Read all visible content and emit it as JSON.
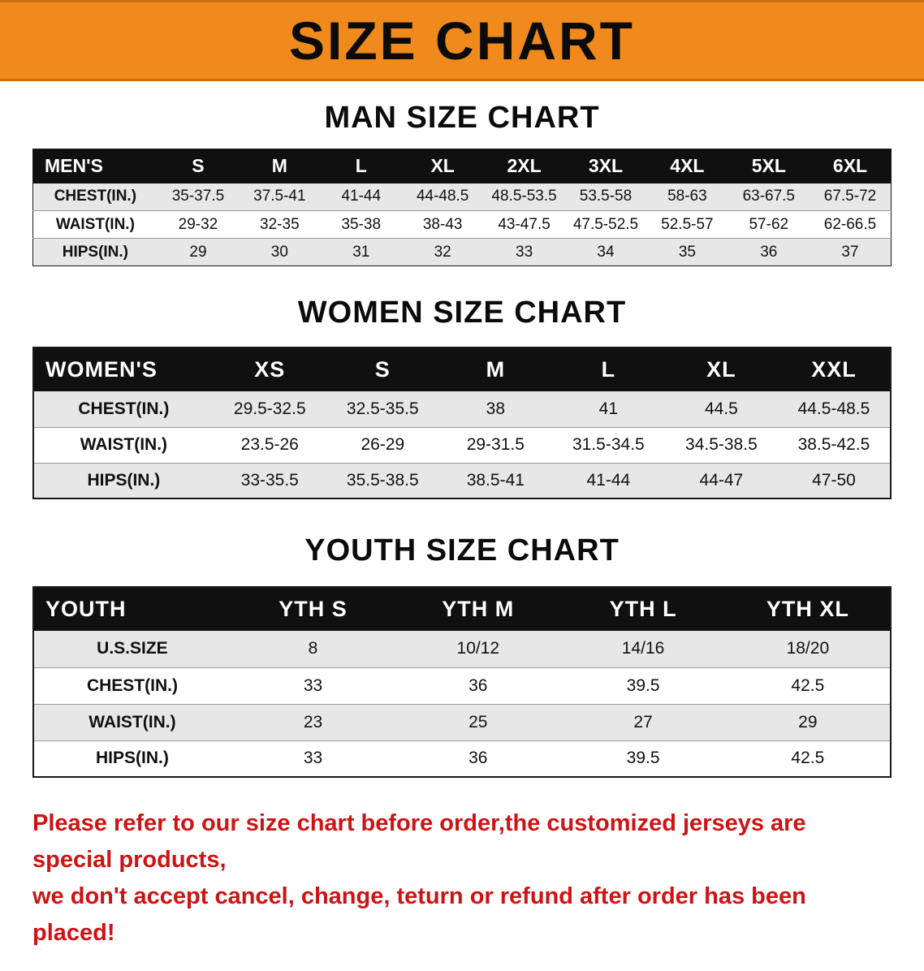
{
  "banner": {
    "title": "SIZE CHART"
  },
  "colors": {
    "banner-bg": "#F08A1D",
    "head-bg": "#101010",
    "row-shaded": "#e7e7e7",
    "disclaimer": "#cf1315"
  },
  "sections": [
    {
      "heading": "MAN SIZE CHART",
      "header_label": "MEN'S",
      "columns": [
        "S",
        "M",
        "L",
        "XL",
        "2XL",
        "3XL",
        "4XL",
        "5XL",
        "6XL"
      ],
      "rows": [
        {
          "label": "CHEST(IN.)",
          "values": [
            "35-37.5",
            "37.5-41",
            "41-44",
            "44-48.5",
            "48.5-53.5",
            "53.5-58",
            "58-63",
            "63-67.5",
            "67.5-72"
          ]
        },
        {
          "label": "WAIST(IN.)",
          "values": [
            "29-32",
            "32-35",
            "35-38",
            "38-43",
            "43-47.5",
            "47.5-52.5",
            "52.5-57",
            "57-62",
            "62-66.5"
          ]
        },
        {
          "label": "HIPS(IN.)",
          "values": [
            "29",
            "30",
            "31",
            "32",
            "33",
            "34",
            "35",
            "36",
            "37"
          ]
        }
      ]
    },
    {
      "heading": "WOMEN SIZE CHART",
      "header_label": "WOMEN'S",
      "columns": [
        "XS",
        "S",
        "M",
        "L",
        "XL",
        "XXL"
      ],
      "rows": [
        {
          "label": "CHEST(IN.)",
          "values": [
            "29.5-32.5",
            "32.5-35.5",
            "38",
            "41",
            "44.5",
            "44.5-48.5"
          ]
        },
        {
          "label": "WAIST(IN.)",
          "values": [
            "23.5-26",
            "26-29",
            "29-31.5",
            "31.5-34.5",
            "34.5-38.5",
            "38.5-42.5"
          ]
        },
        {
          "label": "HIPS(IN.)",
          "values": [
            "33-35.5",
            "35.5-38.5",
            "38.5-41",
            "41-44",
            "44-47",
            "47-50"
          ]
        }
      ]
    },
    {
      "heading": "YOUTH SIZE CHART",
      "header_label": "YOUTH",
      "columns": [
        "YTH S",
        "YTH M",
        "YTH L",
        "YTH XL"
      ],
      "rows": [
        {
          "label": "U.S.SIZE",
          "values": [
            "8",
            "10/12",
            "14/16",
            "18/20"
          ]
        },
        {
          "label": "CHEST(IN.)",
          "values": [
            "33",
            "36",
            "39.5",
            "42.5"
          ]
        },
        {
          "label": "WAIST(IN.)",
          "values": [
            "23",
            "25",
            "27",
            "29"
          ]
        },
        {
          "label": "HIPS(IN.)",
          "values": [
            "33",
            "36",
            "39.5",
            "42.5"
          ]
        }
      ]
    }
  ],
  "disclaimer": {
    "line1": "Please refer to our size chart before order,the customized jerseys are special products,",
    "line2": "we don't accept cancel, change, teturn or refund after order has been placed!"
  }
}
